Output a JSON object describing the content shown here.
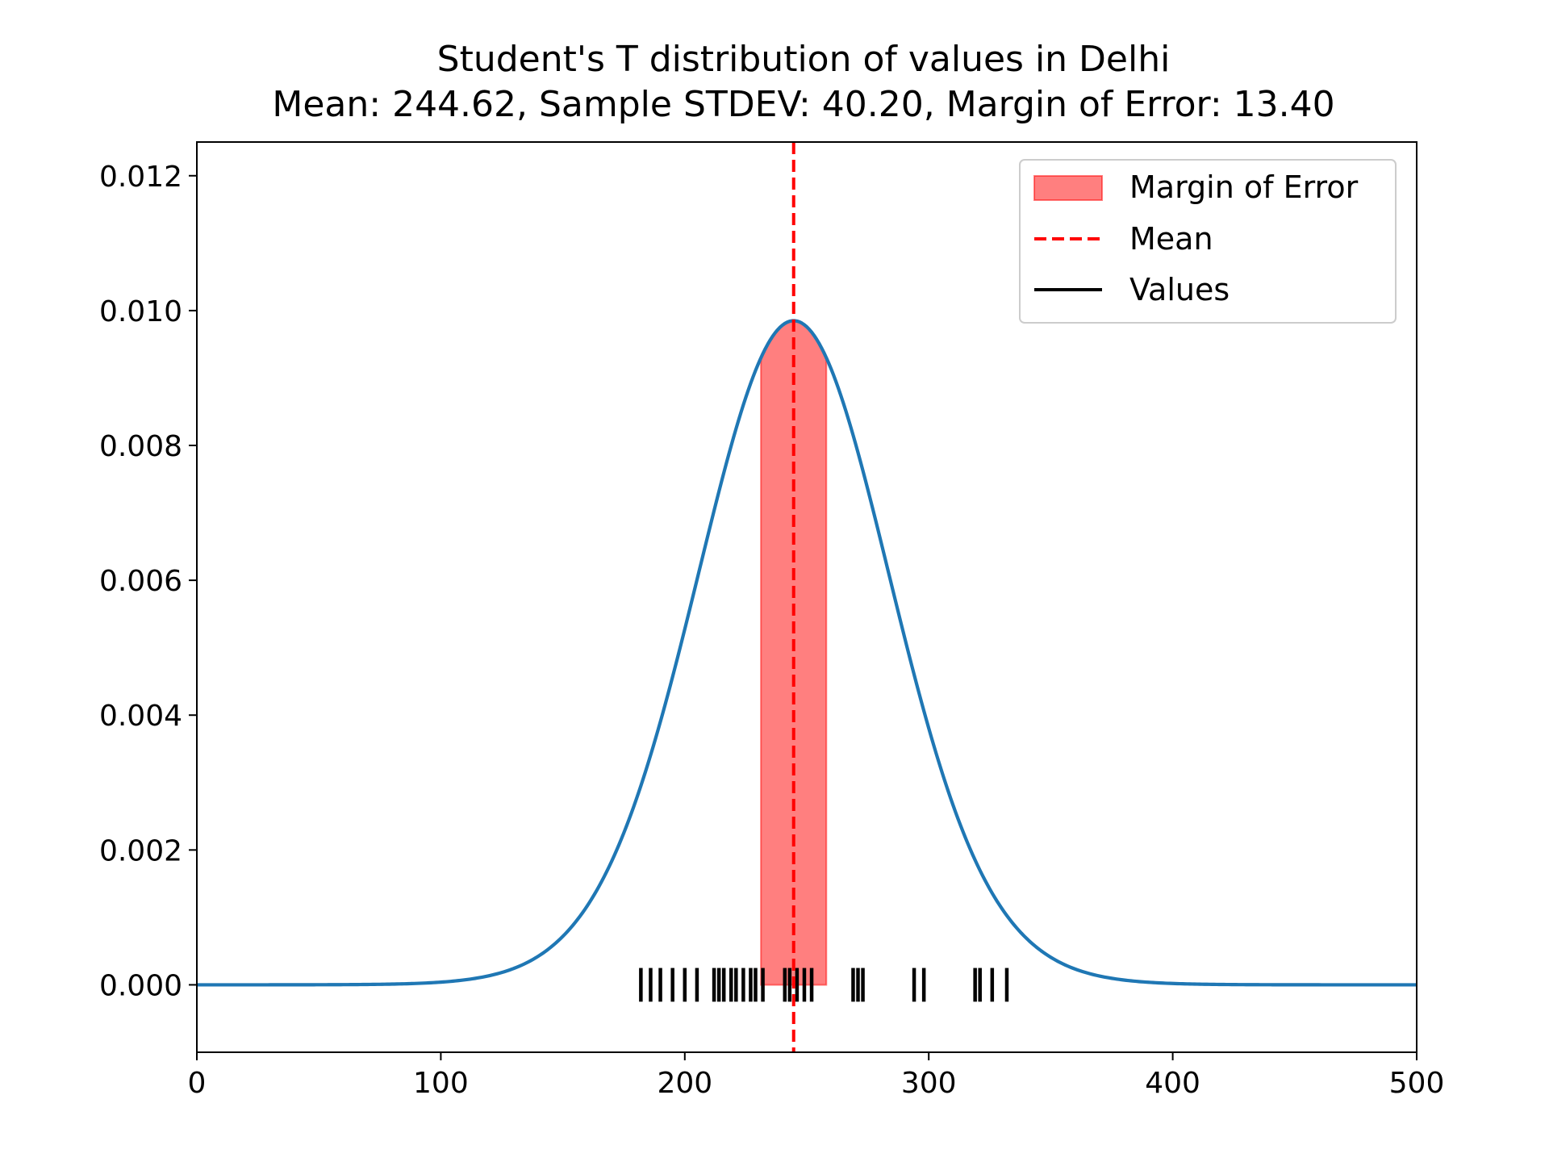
{
  "chart_data": {
    "type": "line",
    "title": "Student's T distribution of values in Delhi",
    "subtitle": "Mean: 244.62, Sample STDEV: 40.20, Margin of Error: 13.40",
    "xlabel": "",
    "ylabel": "",
    "xlim": [
      0,
      500
    ],
    "ylim": [
      -0.001,
      0.0125
    ],
    "x_ticks": [
      0,
      100,
      200,
      300,
      400,
      500
    ],
    "x_tick_labels": [
      "0",
      "100",
      "200",
      "300",
      "400",
      "500"
    ],
    "y_ticks": [
      0.0,
      0.002,
      0.004,
      0.006,
      0.008,
      0.01,
      0.012
    ],
    "y_tick_labels": [
      "0.000",
      "0.002",
      "0.004",
      "0.006",
      "0.008",
      "0.010",
      "0.012"
    ],
    "grid": false,
    "legend_position": "top-right",
    "mean": 244.62,
    "sample_stdev": 40.2,
    "margin_of_error": 13.4,
    "curve_peak": 0.00985,
    "series": [
      {
        "name": "Margin of Error",
        "kind": "band",
        "x_range": [
          231.22,
          258.02
        ],
        "color": "#ff0000",
        "alpha": 0.5
      },
      {
        "name": "Mean",
        "kind": "vline",
        "x": 244.62,
        "color": "#ff0000",
        "style": "dashed"
      },
      {
        "name": "Values",
        "kind": "rug",
        "color": "#000000",
        "values": [
          182,
          186,
          190,
          195,
          200,
          205,
          212,
          214,
          216,
          219,
          221,
          224,
          227,
          229,
          232,
          241,
          243,
          246,
          249,
          252,
          269,
          271,
          273,
          294,
          298,
          319,
          321,
          326,
          332
        ]
      }
    ],
    "curve_color": "#1f77b4"
  }
}
